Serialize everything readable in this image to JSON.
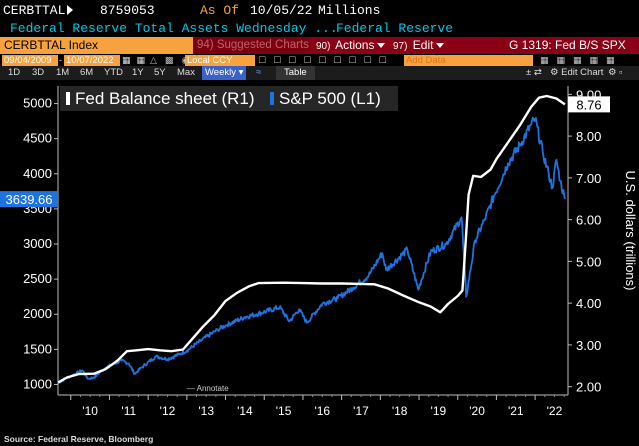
{
  "header": {
    "ticker": "CERBTTAL",
    "value": "8759053",
    "as_of_label": "As Of",
    "as_of_date": "10/05/22",
    "units": "Millions",
    "description": "Federal Reserve Total Assets Wednesday ...",
    "source_name": "Federal Reserve"
  },
  "toolbar": {
    "index": "CERBTTAL Index",
    "suggested_num": "94",
    "suggested": "Suggested Charts",
    "actions_num": "90)",
    "actions": "Actions",
    "edit_num": "97)",
    "edit": "Edit",
    "function": "G 1319: Fed B/S SPX"
  },
  "dates": {
    "start": "09/04/2009",
    "end": "10/07/2022",
    "currency": "Local CCY",
    "add_data": "Add Data"
  },
  "periods": {
    "items": [
      "1D",
      "3D",
      "1M",
      "6M",
      "YTD",
      "1Y",
      "5Y",
      "Max"
    ],
    "frequency": "Weekly",
    "table": "Table",
    "edit_chart": "Edit Chart"
  },
  "footer": {
    "source": "Source: Federal Reserve, Bloomberg"
  },
  "colors": {
    "fed": "#ffffff",
    "spx": "#1f73e0",
    "spx_tag": "#1f73e0",
    "fed_tag": "#ffffff",
    "orange": "#f7a23c",
    "red": "#8a0014"
  },
  "chart_data": {
    "type": "line",
    "legend_placement": "top-left",
    "grid": false,
    "xlim": [
      2009.67,
      2022.85
    ],
    "x_ticks": [
      {
        "label": "'10",
        "x": 2010.0
      },
      {
        "label": "'11",
        "x": 2011.0
      },
      {
        "label": "'12",
        "x": 2012.0
      },
      {
        "label": "'13",
        "x": 2013.0
      },
      {
        "label": "'14",
        "x": 2014.0
      },
      {
        "label": "'15",
        "x": 2015.0
      },
      {
        "label": "'16",
        "x": 2016.0
      },
      {
        "label": "'17",
        "x": 2017.0
      },
      {
        "label": "'18",
        "x": 2018.0
      },
      {
        "label": "'19",
        "x": 2019.0
      },
      {
        "label": "'20",
        "x": 2020.0
      },
      {
        "label": "'21",
        "x": 2021.0
      },
      {
        "label": "'22",
        "x": 2022.0
      }
    ],
    "y_left": {
      "ylim": [
        850,
        5250
      ],
      "ticks": [
        1000,
        1500,
        2000,
        2500,
        3000,
        3500,
        4000,
        4500,
        5000
      ],
      "last_value_label": "3639.66",
      "last_value": 3639.66
    },
    "y_right": {
      "ylabel": "U.S. dollars (trillions)",
      "ylim": [
        1.8,
        9.2
      ],
      "ticks": [
        "2.00",
        "3.00",
        "4.00",
        "5.00",
        "6.00",
        "7.00",
        "8.00",
        "9.00"
      ],
      "last_value_label": "8.76",
      "last_value": 8.76
    },
    "annotation": "Annotate",
    "series": [
      {
        "name": "Fed Balance sheet (R1)",
        "axis": "right",
        "points": [
          [
            2009.67,
            2.1
          ],
          [
            2009.9,
            2.22
          ],
          [
            2010.2,
            2.3
          ],
          [
            2010.6,
            2.31
          ],
          [
            2010.9,
            2.42
          ],
          [
            2011.2,
            2.62
          ],
          [
            2011.45,
            2.85
          ],
          [
            2011.7,
            2.87
          ],
          [
            2012.0,
            2.9
          ],
          [
            2012.3,
            2.87
          ],
          [
            2012.6,
            2.85
          ],
          [
            2012.9,
            2.89
          ],
          [
            2013.1,
            3.1
          ],
          [
            2013.4,
            3.42
          ],
          [
            2013.7,
            3.7
          ],
          [
            2014.0,
            4.05
          ],
          [
            2014.3,
            4.25
          ],
          [
            2014.6,
            4.4
          ],
          [
            2014.85,
            4.48
          ],
          [
            2015.5,
            4.49
          ],
          [
            2016.0,
            4.48
          ],
          [
            2016.5,
            4.47
          ],
          [
            2017.0,
            4.47
          ],
          [
            2017.5,
            4.46
          ],
          [
            2017.85,
            4.45
          ],
          [
            2018.2,
            4.35
          ],
          [
            2018.6,
            4.18
          ],
          [
            2019.0,
            4.02
          ],
          [
            2019.3,
            3.92
          ],
          [
            2019.55,
            3.78
          ],
          [
            2019.75,
            3.98
          ],
          [
            2020.0,
            4.17
          ],
          [
            2020.12,
            4.3
          ],
          [
            2020.2,
            5.4
          ],
          [
            2020.28,
            6.6
          ],
          [
            2020.4,
            7.05
          ],
          [
            2020.6,
            7.02
          ],
          [
            2020.85,
            7.2
          ],
          [
            2021.0,
            7.45
          ],
          [
            2021.3,
            7.85
          ],
          [
            2021.6,
            8.25
          ],
          [
            2021.9,
            8.7
          ],
          [
            2022.1,
            8.92
          ],
          [
            2022.3,
            8.96
          ],
          [
            2022.55,
            8.9
          ],
          [
            2022.77,
            8.76
          ]
        ]
      },
      {
        "name": "S&P 500 (L1)",
        "axis": "left",
        "points": [
          [
            2009.67,
            1020
          ],
          [
            2009.85,
            1080
          ],
          [
            2010.0,
            1120
          ],
          [
            2010.3,
            1200
          ],
          [
            2010.45,
            1080
          ],
          [
            2010.6,
            1100
          ],
          [
            2010.9,
            1240
          ],
          [
            2011.3,
            1340
          ],
          [
            2011.5,
            1300
          ],
          [
            2011.65,
            1150
          ],
          [
            2011.85,
            1250
          ],
          [
            2012.2,
            1400
          ],
          [
            2012.5,
            1360
          ],
          [
            2012.8,
            1430
          ],
          [
            2013.0,
            1480
          ],
          [
            2013.4,
            1640
          ],
          [
            2013.8,
            1780
          ],
          [
            2014.0,
            1840
          ],
          [
            2014.5,
            1960
          ],
          [
            2014.8,
            2000
          ],
          [
            2015.4,
            2100
          ],
          [
            2015.65,
            1900
          ],
          [
            2015.9,
            2070
          ],
          [
            2016.1,
            1880
          ],
          [
            2016.5,
            2150
          ],
          [
            2016.9,
            2230
          ],
          [
            2017.3,
            2380
          ],
          [
            2017.7,
            2550
          ],
          [
            2018.05,
            2870
          ],
          [
            2018.15,
            2630
          ],
          [
            2018.7,
            2920
          ],
          [
            2018.98,
            2350
          ],
          [
            2019.3,
            2890
          ],
          [
            2019.7,
            3000
          ],
          [
            2020.1,
            3380
          ],
          [
            2020.22,
            2250
          ],
          [
            2020.45,
            3050
          ],
          [
            2020.7,
            3350
          ],
          [
            2020.95,
            3700
          ],
          [
            2021.3,
            4150
          ],
          [
            2021.6,
            4400
          ],
          [
            2021.9,
            4700
          ],
          [
            2022.0,
            4780
          ],
          [
            2022.2,
            4300
          ],
          [
            2022.35,
            4000
          ],
          [
            2022.45,
            3800
          ],
          [
            2022.55,
            4200
          ],
          [
            2022.65,
            3900
          ],
          [
            2022.77,
            3639.66
          ]
        ]
      }
    ]
  }
}
